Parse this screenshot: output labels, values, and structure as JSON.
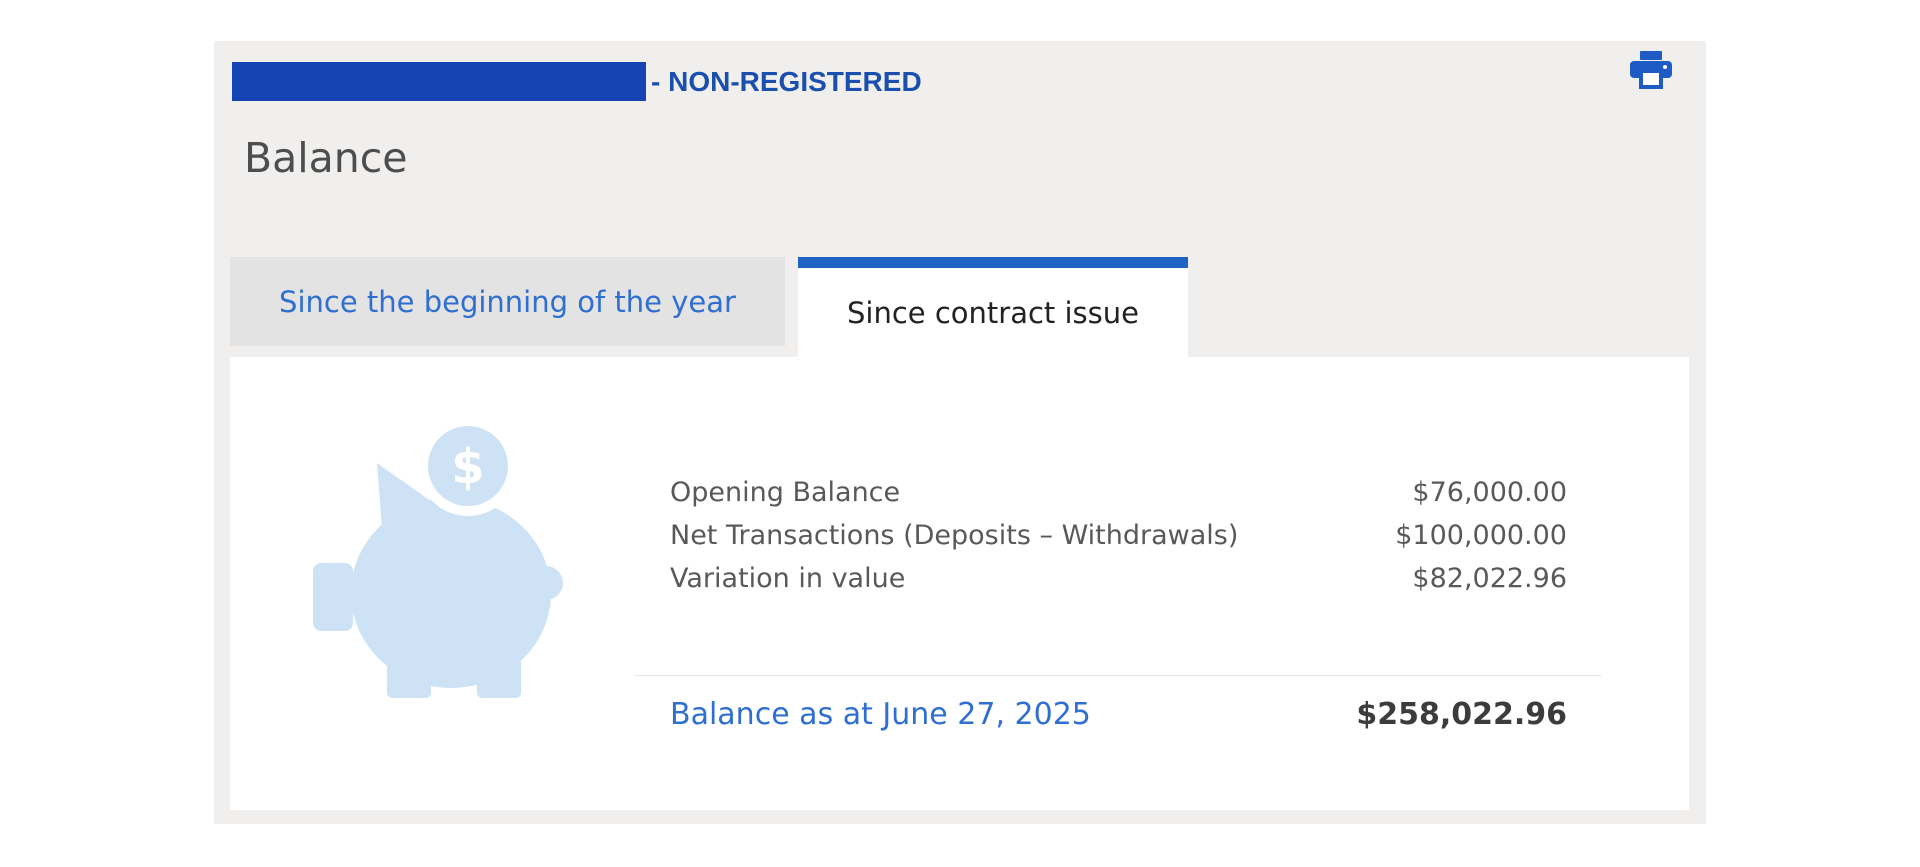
{
  "account": {
    "redacted_color": "#1443b3",
    "suffix": "- NON-REGISTERED"
  },
  "header": {
    "title": "Balance",
    "print_icon": "printer-icon"
  },
  "tabs": [
    {
      "label": "Since the beginning of the year",
      "active": false
    },
    {
      "label": "Since contract issue",
      "active": true
    }
  ],
  "illustration": {
    "icon": "piggy-bank-icon",
    "symbol": "$",
    "color": "#cde3f5"
  },
  "rows": [
    {
      "label": "Opening Balance",
      "value": "$76,000.00"
    },
    {
      "label": "Net Transactions (Deposits – Withdrawals)",
      "value": "$100,000.00"
    },
    {
      "label": "Variation in value",
      "value": "$82,022.96"
    }
  ],
  "total": {
    "label": "Balance as at June 27, 2025",
    "value": "$258,022.96"
  },
  "colors": {
    "accent": "#1f62c4",
    "link": "#2f6fd0",
    "panel": "#f0efee"
  }
}
